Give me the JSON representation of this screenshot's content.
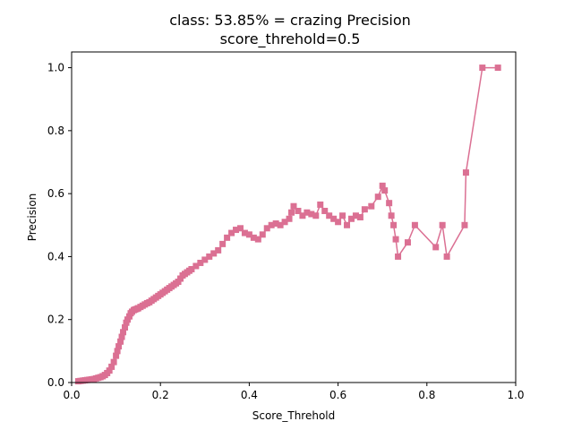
{
  "chart_data": {
    "type": "line",
    "title": "class: 53.85% = crazing Precision",
    "subtitle": "score_threhold=0.5",
    "xlabel": "Score_Threhold",
    "ylabel": "Precision",
    "xlim": [
      0.0,
      1.0
    ],
    "ylim": [
      0.0,
      1.05
    ],
    "xticks": [
      "0.0",
      "0.2",
      "0.4",
      "0.6",
      "0.8",
      "1.0"
    ],
    "yticks": [
      "0.0",
      "0.2",
      "0.4",
      "0.6",
      "0.8",
      "1.0"
    ],
    "grid": false,
    "color": "#DB7093",
    "marker": "square",
    "series": [
      {
        "x": [
          0.015,
          0.02,
          0.025,
          0.03,
          0.035,
          0.04,
          0.045,
          0.05,
          0.055,
          0.06,
          0.065,
          0.07,
          0.075,
          0.08,
          0.085,
          0.09,
          0.095,
          0.1,
          0.103,
          0.106,
          0.11,
          0.113,
          0.116,
          0.12,
          0.123,
          0.126,
          0.13,
          0.133,
          0.136,
          0.14,
          0.143,
          0.147,
          0.15,
          0.155,
          0.16,
          0.165,
          0.17,
          0.175,
          0.18,
          0.185,
          0.19,
          0.195,
          0.2,
          0.205,
          0.21,
          0.215,
          0.22,
          0.225,
          0.23,
          0.235,
          0.24,
          0.245,
          0.25,
          0.255,
          0.26,
          0.265,
          0.27,
          0.28,
          0.29,
          0.3,
          0.31,
          0.32,
          0.33,
          0.34,
          0.35,
          0.36,
          0.37,
          0.38,
          0.39,
          0.4,
          0.41,
          0.42,
          0.43,
          0.44,
          0.45,
          0.46,
          0.47,
          0.48,
          0.49,
          0.495,
          0.5,
          0.51,
          0.52,
          0.53,
          0.54,
          0.55,
          0.56,
          0.57,
          0.58,
          0.59,
          0.6,
          0.61,
          0.62,
          0.63,
          0.64,
          0.65,
          0.66,
          0.675,
          0.69,
          0.7,
          0.705,
          0.715,
          0.72,
          0.725,
          0.73,
          0.735,
          0.757,
          0.773,
          0.82,
          0.835,
          0.845,
          0.885,
          0.888,
          0.925,
          0.96
        ],
        "y": [
          0.004,
          0.005,
          0.006,
          0.007,
          0.008,
          0.009,
          0.01,
          0.011,
          0.013,
          0.015,
          0.017,
          0.02,
          0.024,
          0.03,
          0.038,
          0.05,
          0.065,
          0.085,
          0.1,
          0.115,
          0.13,
          0.145,
          0.16,
          0.175,
          0.19,
          0.2,
          0.21,
          0.22,
          0.225,
          0.23,
          0.232,
          0.234,
          0.236,
          0.24,
          0.244,
          0.248,
          0.252,
          0.255,
          0.26,
          0.265,
          0.27,
          0.275,
          0.28,
          0.285,
          0.29,
          0.295,
          0.3,
          0.305,
          0.31,
          0.315,
          0.32,
          0.33,
          0.34,
          0.345,
          0.35,
          0.355,
          0.36,
          0.37,
          0.38,
          0.39,
          0.4,
          0.41,
          0.42,
          0.44,
          0.46,
          0.475,
          0.485,
          0.49,
          0.475,
          0.47,
          0.46,
          0.455,
          0.47,
          0.49,
          0.5,
          0.505,
          0.5,
          0.51,
          0.52,
          0.54,
          0.56,
          0.545,
          0.53,
          0.54,
          0.535,
          0.53,
          0.565,
          0.545,
          0.53,
          0.52,
          0.51,
          0.53,
          0.5,
          0.52,
          0.53,
          0.525,
          0.55,
          0.56,
          0.59,
          0.625,
          0.61,
          0.57,
          0.53,
          0.5,
          0.455,
          0.4,
          0.445,
          0.5,
          0.43,
          0.5,
          0.4,
          0.5,
          0.667,
          1.0,
          1.0
        ]
      }
    ]
  }
}
